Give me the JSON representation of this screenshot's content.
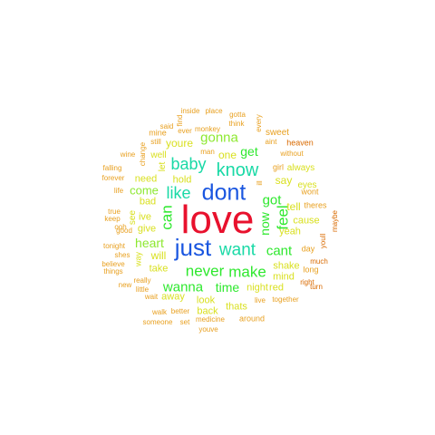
{
  "colors": {
    "c1": "#e8112d",
    "c2": "#1a56e0",
    "c3": "#19d9a6",
    "c4": "#2ee82e",
    "c5": "#8de830",
    "c6": "#d9e020",
    "c7": "#e8a020",
    "c8": "#d96a00"
  },
  "words": [
    {
      "text": "love",
      "color": "c1",
      "vertical": false
    },
    {
      "text": "dont",
      "color": "c2",
      "vertical": false
    },
    {
      "text": "just",
      "color": "c2",
      "vertical": false
    },
    {
      "text": "know",
      "color": "c3",
      "vertical": false
    },
    {
      "text": "want",
      "color": "c3",
      "vertical": false
    },
    {
      "text": "can",
      "color": "c4",
      "vertical": true
    },
    {
      "text": "baby",
      "color": "c3",
      "vertical": false
    },
    {
      "text": "like",
      "color": "c3",
      "vertical": false
    },
    {
      "text": "never",
      "color": "c4",
      "vertical": false
    },
    {
      "text": "make",
      "color": "c4",
      "vertical": false
    },
    {
      "text": "cant",
      "color": "c4",
      "vertical": false
    },
    {
      "text": "feel",
      "color": "c4",
      "vertical": true
    },
    {
      "text": "got",
      "color": "c4",
      "vertical": false
    },
    {
      "text": "now",
      "color": "c4",
      "vertical": true
    },
    {
      "text": "wanna",
      "color": "c4",
      "vertical": false
    },
    {
      "text": "time",
      "color": "c4",
      "vertical": false
    },
    {
      "text": "gonna",
      "color": "c5",
      "vertical": false
    },
    {
      "text": "get",
      "color": "c4",
      "vertical": false
    },
    {
      "text": "come",
      "color": "c5",
      "vertical": false
    },
    {
      "text": "heart",
      "color": "c5",
      "vertical": false
    },
    {
      "text": "youre",
      "color": "c6",
      "vertical": false
    },
    {
      "text": "one",
      "color": "c6",
      "vertical": false
    },
    {
      "text": "say",
      "color": "c6",
      "vertical": false
    },
    {
      "text": "will",
      "color": "c6",
      "vertical": false
    },
    {
      "text": "need",
      "color": "c6",
      "vertical": false
    },
    {
      "text": "bad",
      "color": "c6",
      "vertical": false
    },
    {
      "text": "well",
      "color": "c6",
      "vertical": false
    },
    {
      "text": "hold",
      "color": "c6",
      "vertical": false
    },
    {
      "text": "tell",
      "color": "c6",
      "vertical": false
    },
    {
      "text": "yeah",
      "color": "c6",
      "vertical": false
    },
    {
      "text": "cause",
      "color": "c6",
      "vertical": false
    },
    {
      "text": "eyes",
      "color": "c6",
      "vertical": false
    },
    {
      "text": "always",
      "color": "c6",
      "vertical": false
    },
    {
      "text": "ive",
      "color": "c6",
      "vertical": false
    },
    {
      "text": "give",
      "color": "c6",
      "vertical": false
    },
    {
      "text": "take",
      "color": "c6",
      "vertical": false
    },
    {
      "text": "away",
      "color": "c6",
      "vertical": false
    },
    {
      "text": "look",
      "color": "c6",
      "vertical": false
    },
    {
      "text": "back",
      "color": "c6",
      "vertical": false
    },
    {
      "text": "thats",
      "color": "c6",
      "vertical": false
    },
    {
      "text": "shake",
      "color": "c6",
      "vertical": false
    },
    {
      "text": "mind",
      "color": "c6",
      "vertical": false
    },
    {
      "text": "night",
      "color": "c6",
      "vertical": false
    },
    {
      "text": "red",
      "color": "c6",
      "vertical": false
    },
    {
      "text": "let",
      "color": "c6",
      "vertical": true
    },
    {
      "text": "see",
      "color": "c6",
      "vertical": true
    },
    {
      "text": "way",
      "color": "c6",
      "vertical": true
    },
    {
      "text": "sweet",
      "color": "c7",
      "vertical": false
    },
    {
      "text": "mine",
      "color": "c7",
      "vertical": false
    },
    {
      "text": "still",
      "color": "c7",
      "vertical": false
    },
    {
      "text": "change",
      "color": "c7",
      "vertical": true
    },
    {
      "text": "ill",
      "color": "c7",
      "vertical": true
    },
    {
      "text": "girl",
      "color": "c7",
      "vertical": false
    },
    {
      "text": "theres",
      "color": "c7",
      "vertical": false
    },
    {
      "text": "wont",
      "color": "c7",
      "vertical": false
    },
    {
      "text": "day",
      "color": "c7",
      "vertical": false
    },
    {
      "text": "long",
      "color": "c7",
      "vertical": false
    },
    {
      "text": "live",
      "color": "c7",
      "vertical": false
    },
    {
      "text": "together",
      "color": "c7",
      "vertical": false
    },
    {
      "text": "around",
      "color": "c7",
      "vertical": false
    },
    {
      "text": "youve",
      "color": "c7",
      "vertical": false
    },
    {
      "text": "medicine",
      "color": "c7",
      "vertical": false
    },
    {
      "text": "set",
      "color": "c7",
      "vertical": false
    },
    {
      "text": "someone",
      "color": "c7",
      "vertical": false
    },
    {
      "text": "walk",
      "color": "c7",
      "vertical": false
    },
    {
      "text": "better",
      "color": "c7",
      "vertical": false
    },
    {
      "text": "wait",
      "color": "c7",
      "vertical": false
    },
    {
      "text": "little",
      "color": "c7",
      "vertical": false
    },
    {
      "text": "really",
      "color": "c7",
      "vertical": false
    },
    {
      "text": "new",
      "color": "c7",
      "vertical": false
    },
    {
      "text": "things",
      "color": "c7",
      "vertical": false
    },
    {
      "text": "believe",
      "color": "c7",
      "vertical": false
    },
    {
      "text": "shes",
      "color": "c7",
      "vertical": false
    },
    {
      "text": "tonight",
      "color": "c7",
      "vertical": false
    },
    {
      "text": "good",
      "color": "c7",
      "vertical": false
    },
    {
      "text": "ooh",
      "color": "c7",
      "vertical": false
    },
    {
      "text": "keep",
      "color": "c7",
      "vertical": false
    },
    {
      "text": "true",
      "color": "c7",
      "vertical": false
    },
    {
      "text": "life",
      "color": "c7",
      "vertical": false
    },
    {
      "text": "forever",
      "color": "c7",
      "vertical": false
    },
    {
      "text": "falling",
      "color": "c7",
      "vertical": false
    },
    {
      "text": "wine",
      "color": "c7",
      "vertical": false
    },
    {
      "text": "said",
      "color": "c7",
      "vertical": false
    },
    {
      "text": "monkey",
      "color": "c7",
      "vertical": false
    },
    {
      "text": "inside",
      "color": "c7",
      "vertical": false
    },
    {
      "text": "place",
      "color": "c7",
      "vertical": false
    },
    {
      "text": "find",
      "color": "c7",
      "vertical": true
    },
    {
      "text": "ever",
      "color": "c7",
      "vertical": false
    },
    {
      "text": "gotta",
      "color": "c7",
      "vertical": false
    },
    {
      "text": "think",
      "color": "c7",
      "vertical": false
    },
    {
      "text": "every",
      "color": "c7",
      "vertical": true
    },
    {
      "text": "man",
      "color": "c7",
      "vertical": false
    },
    {
      "text": "aint",
      "color": "c7",
      "vertical": false
    },
    {
      "text": "without",
      "color": "c7",
      "vertical": false
    },
    {
      "text": "heaven",
      "color": "c8",
      "vertical": false
    },
    {
      "text": "maybe",
      "color": "c8",
      "vertical": true
    },
    {
      "text": "youll",
      "color": "c8",
      "vertical": true
    },
    {
      "text": "much",
      "color": "c8",
      "vertical": false
    },
    {
      "text": "turn",
      "color": "c8",
      "vertical": false
    },
    {
      "text": "right",
      "color": "c8",
      "vertical": false
    }
  ]
}
